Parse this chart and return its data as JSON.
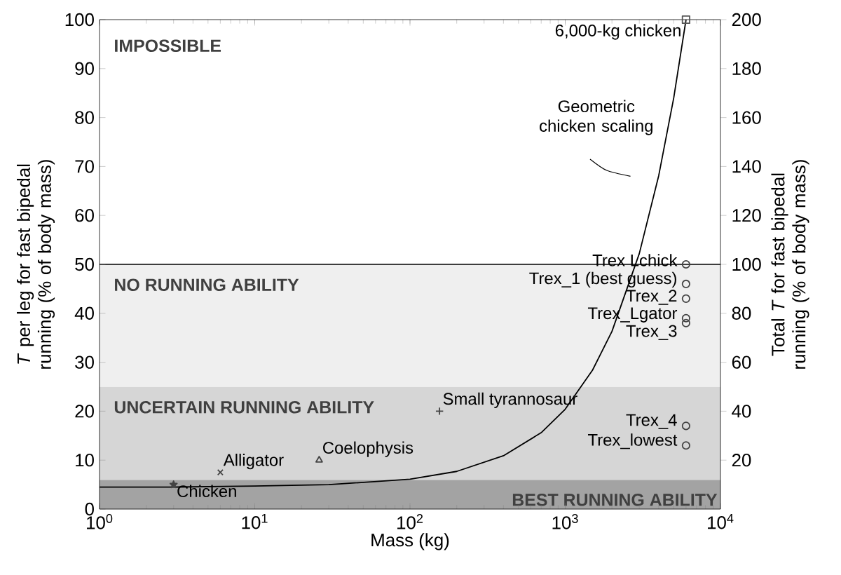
{
  "chart_data": {
    "type": "scatter",
    "xlabel": "Mass (kg)",
    "ylabel": "*T* per leg for fast bipedal running (% of body mass)",
    "y2label": "Total *T* for fast bipedal running (% of body mass)",
    "log": "x",
    "xlim": [
      1,
      10000
    ],
    "xticks": [
      {
        "value": 1,
        "label": "10$^{0}$"
      },
      {
        "value": 10,
        "label": "10$^{1}$"
      },
      {
        "value": 100,
        "label": "10$^{2}$"
      },
      {
        "value": 1000,
        "label": "10$^{3}$"
      },
      {
        "value": 10000,
        "label": "10$^{4}$"
      }
    ],
    "ylim": [
      0,
      100
    ],
    "yticks": [
      0,
      10,
      20,
      30,
      40,
      50,
      60,
      70,
      80,
      90,
      100
    ],
    "y2lim": [
      0,
      200
    ],
    "y2ticks": [
      20,
      40,
      60,
      80,
      100,
      120,
      140,
      160,
      180,
      200
    ],
    "grid": false,
    "bands": [
      {
        "axis": "y",
        "from": 0,
        "to": 6,
        "label": "BEST RUNNING ABILITY",
        "color": "#a3a3a3"
      },
      {
        "axis": "y",
        "from": 6,
        "to": 25,
        "label": "UNCERTAIN RUNNING ABILITY",
        "color": "#d6d6d6"
      },
      {
        "axis": "y",
        "from": 25,
        "to": 50,
        "label": "NO RUNNING ABILITY",
        "color": "#efefef"
      }
    ],
    "annotations": [
      "IMPOSSIBLE"
    ],
    "ref_lines": [
      {
        "axis": "y",
        "value": 50,
        "color": "#000000"
      }
    ],
    "series": [
      {
        "name": "Geometric chicken scaling",
        "type": "line",
        "marker": "none",
        "color": "#000000",
        "x": [
          1,
          3,
          10,
          30,
          100,
          200,
          400,
          700,
          1000,
          1500,
          2000,
          3000,
          4000,
          5000,
          6000
        ],
        "values": [
          4.5,
          4.5,
          4.7,
          5.0,
          6.1,
          7.7,
          10.9,
          15.6,
          20.4,
          28.4,
          36.3,
          52.2,
          68.1,
          84,
          100
        ]
      },
      {
        "name": "6,000-kg chicken",
        "marker": "square",
        "color": "#555555",
        "x": [
          6000
        ],
        "values": [
          100
        ]
      },
      {
        "name": "Chicken",
        "marker": "star",
        "color": "#444444",
        "x": [
          3
        ],
        "values": [
          5
        ]
      },
      {
        "name": "Alligator",
        "marker": "cross",
        "color": "#444444",
        "x": [
          6
        ],
        "values": [
          7.5
        ]
      },
      {
        "name": "Coelophysis",
        "marker": "triangle",
        "color": "#444444",
        "x": [
          26
        ],
        "values": [
          10
        ]
      },
      {
        "name": "Small tyrannosaur",
        "marker": "plus",
        "color": "#444444",
        "x": [
          155
        ],
        "values": [
          20
        ]
      },
      {
        "name": "Trex Lchick",
        "marker": "circle",
        "color": "#444444",
        "x": [
          6000
        ],
        "values": [
          50
        ]
      },
      {
        "name": "Trex_1 (best guess)",
        "marker": "circle",
        "color": "#444444",
        "x": [
          6000
        ],
        "values": [
          46
        ]
      },
      {
        "name": "Trex_2",
        "marker": "circle",
        "color": "#444444",
        "x": [
          6000
        ],
        "values": [
          43
        ]
      },
      {
        "name": "Trex_Lgator",
        "marker": "circle",
        "color": "#444444",
        "x": [
          6000
        ],
        "values": [
          39
        ]
      },
      {
        "name": "Trex_3",
        "marker": "circle",
        "color": "#444444",
        "x": [
          6000
        ],
        "values": [
          38
        ]
      },
      {
        "name": "Trex_4",
        "marker": "circle",
        "color": "#444444",
        "x": [
          6000
        ],
        "values": [
          17
        ]
      },
      {
        "name": "Trex_lowest",
        "marker": "circle",
        "color": "#444444",
        "x": [
          6000
        ],
        "values": [
          13
        ]
      }
    ]
  }
}
